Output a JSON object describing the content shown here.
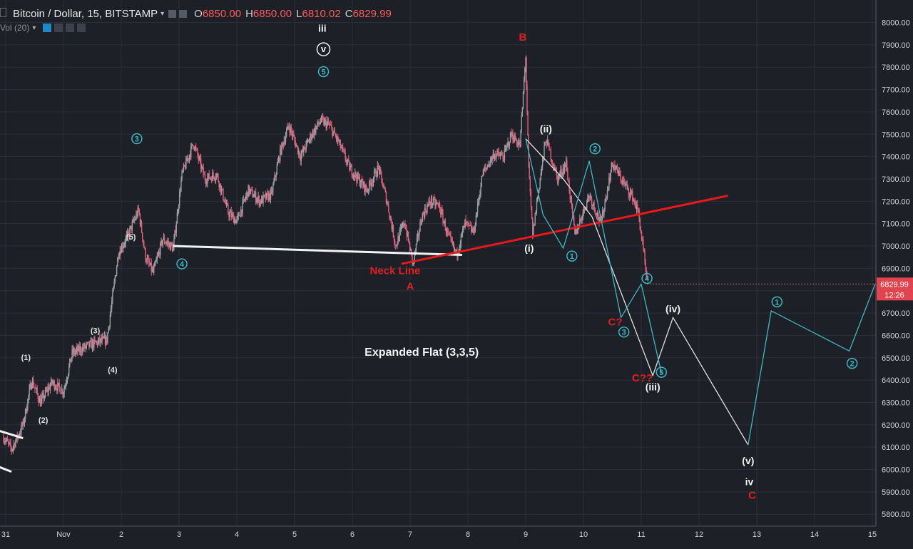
{
  "header": {
    "symbol": "Bitcoin / Dollar, 15, BITSTAMP",
    "open_label": "O",
    "open": "6850.00",
    "high_label": "H",
    "high": "6850.00",
    "low_label": "L",
    "low": "6810.02",
    "close_label": "C",
    "close": "6829.99",
    "indicator": "Vol (20)"
  },
  "price_tag": {
    "price": "6829.99",
    "countdown": "12:26"
  },
  "colors": {
    "background": "#1e2027",
    "grid": "#2b2e38",
    "candle_up": "#9aa0a6",
    "candle_down": "#e0607a",
    "trendline_red": "#e8191b",
    "trendline_white": "#f2f2f2",
    "wave_cyan": "#3fb6c4",
    "wave_white": "#e0e0e0",
    "label_red": "#e02020"
  },
  "chart_data": {
    "type": "line",
    "title": "Bitcoin / Dollar, 15, BITSTAMP",
    "ylim": [
      5700,
      8050
    ],
    "y_ticks": [
      "5800.00",
      "5900.00",
      "6000.00",
      "6100.00",
      "6200.00",
      "6300.00",
      "6400.00",
      "6500.00",
      "6600.00",
      "6700.00",
      "6800.00",
      "6900.00",
      "7000.00",
      "7100.00",
      "7200.00",
      "7300.00",
      "7400.00",
      "7500.00",
      "7600.00",
      "7700.00",
      "7800.00",
      "7900.00",
      "8000.00"
    ],
    "x_ticks": [
      {
        "label": "31",
        "x": 31
      },
      {
        "label": "Nov",
        "x": 32
      },
      {
        "label": "2",
        "x": 33
      },
      {
        "label": "3",
        "x": 34
      },
      {
        "label": "4",
        "x": 35
      },
      {
        "label": "5",
        "x": 36
      },
      {
        "label": "6",
        "x": 37
      },
      {
        "label": "7",
        "x": 38
      },
      {
        "label": "8",
        "x": 39
      },
      {
        "label": "9",
        "x": 40
      },
      {
        "label": "10",
        "x": 41
      },
      {
        "label": "11",
        "x": 42
      },
      {
        "label": "12",
        "x": 43
      },
      {
        "label": "13",
        "x": 44
      },
      {
        "label": "14",
        "x": 45
      },
      {
        "label": "15",
        "x": 46
      }
    ],
    "price_series": [
      {
        "x": 30.95,
        "y": 6150
      },
      {
        "x": 31.1,
        "y": 6090
      },
      {
        "x": 31.3,
        "y": 6200
      },
      {
        "x": 31.45,
        "y": 6400
      },
      {
        "x": 31.6,
        "y": 6300
      },
      {
        "x": 31.8,
        "y": 6390
      },
      {
        "x": 32.0,
        "y": 6350
      },
      {
        "x": 32.15,
        "y": 6520
      },
      {
        "x": 32.4,
        "y": 6550
      },
      {
        "x": 32.6,
        "y": 6570
      },
      {
        "x": 32.75,
        "y": 6580
      },
      {
        "x": 32.95,
        "y": 6970
      },
      {
        "x": 33.12,
        "y": 7050
      },
      {
        "x": 33.3,
        "y": 7160
      },
      {
        "x": 33.42,
        "y": 6950
      },
      {
        "x": 33.55,
        "y": 6880
      },
      {
        "x": 33.72,
        "y": 7030
      },
      {
        "x": 33.9,
        "y": 6990
      },
      {
        "x": 34.05,
        "y": 7320
      },
      {
        "x": 34.25,
        "y": 7460
      },
      {
        "x": 34.45,
        "y": 7300
      },
      {
        "x": 34.65,
        "y": 7320
      },
      {
        "x": 34.85,
        "y": 7150
      },
      {
        "x": 35.0,
        "y": 7110
      },
      {
        "x": 35.2,
        "y": 7250
      },
      {
        "x": 35.4,
        "y": 7200
      },
      {
        "x": 35.6,
        "y": 7230
      },
      {
        "x": 35.75,
        "y": 7420
      },
      {
        "x": 35.9,
        "y": 7540
      },
      {
        "x": 36.1,
        "y": 7400
      },
      {
        "x": 36.3,
        "y": 7500
      },
      {
        "x": 36.45,
        "y": 7560
      },
      {
        "x": 36.6,
        "y": 7540
      },
      {
        "x": 36.75,
        "y": 7470
      },
      {
        "x": 36.95,
        "y": 7350
      },
      {
        "x": 37.1,
        "y": 7300
      },
      {
        "x": 37.25,
        "y": 7250
      },
      {
        "x": 37.45,
        "y": 7350
      },
      {
        "x": 37.6,
        "y": 7200
      },
      {
        "x": 37.75,
        "y": 7000
      },
      {
        "x": 37.9,
        "y": 7110
      },
      {
        "x": 38.05,
        "y": 6920
      },
      {
        "x": 38.2,
        "y": 7130
      },
      {
        "x": 38.35,
        "y": 7200
      },
      {
        "x": 38.5,
        "y": 7180
      },
      {
        "x": 38.65,
        "y": 7050
      },
      {
        "x": 38.8,
        "y": 6960
      },
      {
        "x": 38.95,
        "y": 7100
      },
      {
        "x": 39.1,
        "y": 7060
      },
      {
        "x": 39.25,
        "y": 7320
      },
      {
        "x": 39.45,
        "y": 7410
      },
      {
        "x": 39.62,
        "y": 7400
      },
      {
        "x": 39.75,
        "y": 7500
      },
      {
        "x": 39.9,
        "y": 7450
      },
      {
        "x": 40.0,
        "y": 7850
      },
      {
        "x": 40.05,
        "y": 7350
      },
      {
        "x": 40.12,
        "y": 7050
      },
      {
        "x": 40.22,
        "y": 7250
      },
      {
        "x": 40.35,
        "y": 7480
      },
      {
        "x": 40.55,
        "y": 7300
      },
      {
        "x": 40.7,
        "y": 7370
      },
      {
        "x": 40.85,
        "y": 7050
      },
      {
        "x": 40.95,
        "y": 7120
      },
      {
        "x": 41.1,
        "y": 7230
      },
      {
        "x": 41.3,
        "y": 7100
      },
      {
        "x": 41.5,
        "y": 7370
      },
      {
        "x": 41.7,
        "y": 7280
      },
      {
        "x": 41.85,
        "y": 7220
      },
      {
        "x": 41.95,
        "y": 7150
      },
      {
        "x": 42.05,
        "y": 6950
      },
      {
        "x": 42.1,
        "y": 6830
      }
    ],
    "lines": [
      {
        "name": "neckline_white",
        "color": "#f2f2f2",
        "points": [
          [
            33.9,
            7000
          ],
          [
            38.9,
            6960
          ]
        ]
      },
      {
        "name": "neckline_red",
        "color": "#e8191b",
        "points": [
          [
            37.85,
            6920
          ],
          [
            43.5,
            7225
          ]
        ]
      },
      {
        "name": "lower_white_a",
        "color": "#f2f2f2",
        "points": [
          [
            30.8,
            6180
          ],
          [
            31.3,
            6140
          ]
        ]
      },
      {
        "name": "lower_white_b",
        "color": "#f2f2f2",
        "points": [
          [
            30.8,
            6020
          ],
          [
            31.1,
            5990
          ]
        ]
      },
      {
        "name": "white_projection",
        "color": "#e0e0e0",
        "points": [
          [
            40.0,
            7480
          ],
          [
            40.65,
            7300
          ],
          [
            41.15,
            7130
          ],
          [
            42.2,
            6420
          ],
          [
            42.55,
            6680
          ],
          [
            43.85,
            6110
          ]
        ]
      },
      {
        "name": "cyan_projection",
        "color": "#3fb6c4",
        "points": [
          [
            40.0,
            7480
          ],
          [
            40.3,
            7140
          ],
          [
            40.65,
            6990
          ],
          [
            41.1,
            7380
          ],
          [
            41.65,
            6680
          ],
          [
            42.0,
            6830
          ],
          [
            42.35,
            6430
          ]
        ]
      },
      {
        "name": "cyan_projection_2",
        "color": "#3fb6c4",
        "points": [
          [
            43.85,
            6110
          ],
          [
            44.25,
            6710
          ],
          [
            45.6,
            6530
          ],
          [
            46.05,
            6830
          ]
        ]
      }
    ],
    "annotations": [
      {
        "text": "iii",
        "x": 36.48,
        "y": 7975,
        "color": "#f2f2f2",
        "style": "bold"
      },
      {
        "text": "v",
        "x": 36.5,
        "y": 7880,
        "color": "#f2f2f2",
        "style": "circle-white"
      },
      {
        "text": "5",
        "x": 36.5,
        "y": 7780,
        "color": "#3fb6c4",
        "style": "circle"
      },
      {
        "text": "3",
        "x": 33.27,
        "y": 7480,
        "color": "#3fb6c4",
        "style": "circle"
      },
      {
        "text": "4",
        "x": 34.05,
        "y": 6920,
        "color": "#3fb6c4",
        "style": "circle"
      },
      {
        "text": "(5)",
        "x": 33.17,
        "y": 7045,
        "color": "#e0e0e0",
        "style": "small"
      },
      {
        "text": "(3)",
        "x": 32.55,
        "y": 6625,
        "color": "#e0e0e0",
        "style": "small"
      },
      {
        "text": "(4)",
        "x": 32.85,
        "y": 6450,
        "color": "#e0e0e0",
        "style": "small"
      },
      {
        "text": "(1)",
        "x": 31.35,
        "y": 6505,
        "color": "#e0e0e0",
        "style": "small"
      },
      {
        "text": "(2)",
        "x": 31.65,
        "y": 6225,
        "color": "#e0e0e0",
        "style": "small"
      },
      {
        "text": "B",
        "x": 39.95,
        "y": 7935,
        "color": "#e02020",
        "style": "red"
      },
      {
        "text": "Neck Line",
        "x": 37.74,
        "y": 6890,
        "color": "#e02020",
        "style": "red"
      },
      {
        "text": "A",
        "x": 38.0,
        "y": 6820,
        "color": "#e02020",
        "style": "red"
      },
      {
        "text": "(i)",
        "x": 40.06,
        "y": 6990,
        "color": "#f2f2f2",
        "style": "bold"
      },
      {
        "text": "(ii)",
        "x": 40.35,
        "y": 7525,
        "color": "#f2f2f2",
        "style": "bold"
      },
      {
        "text": "1",
        "x": 40.8,
        "y": 6955,
        "color": "#3fb6c4",
        "style": "circle"
      },
      {
        "text": "2",
        "x": 41.2,
        "y": 7435,
        "color": "#3fb6c4",
        "style": "circle"
      },
      {
        "text": "4",
        "x": 42.1,
        "y": 6855,
        "color": "#3fb6c4",
        "style": "circle"
      },
      {
        "text": "3",
        "x": 41.7,
        "y": 6615,
        "color": "#3fb6c4",
        "style": "circle"
      },
      {
        "text": "5",
        "x": 42.35,
        "y": 6435,
        "color": "#3fb6c4",
        "style": "circle"
      },
      {
        "text": "C?",
        "x": 41.55,
        "y": 6660,
        "color": "#e02020",
        "style": "red"
      },
      {
        "text": "C??",
        "x": 42.02,
        "y": 6410,
        "color": "#e02020",
        "style": "red"
      },
      {
        "text": "(iii)",
        "x": 42.2,
        "y": 6370,
        "color": "#f2f2f2",
        "style": "bold"
      },
      {
        "text": "(iv)",
        "x": 42.55,
        "y": 6720,
        "color": "#f2f2f2",
        "style": "bold"
      },
      {
        "text": "(v)",
        "x": 43.85,
        "y": 6040,
        "color": "#f2f2f2",
        "style": "bold"
      },
      {
        "text": "iv",
        "x": 43.87,
        "y": 5945,
        "color": "#f2f2f2",
        "style": "bold"
      },
      {
        "text": "C",
        "x": 43.92,
        "y": 5885,
        "color": "#e02020",
        "style": "red"
      },
      {
        "text": "1",
        "x": 44.35,
        "y": 6750,
        "color": "#3fb6c4",
        "style": "circle"
      },
      {
        "text": "2",
        "x": 45.65,
        "y": 6475,
        "color": "#3fb6c4",
        "style": "circle"
      },
      {
        "text": "Expanded Flat (3,3,5)",
        "x": 38.2,
        "y": 6525,
        "color": "#f2f2f2",
        "style": "bold-large"
      }
    ]
  }
}
